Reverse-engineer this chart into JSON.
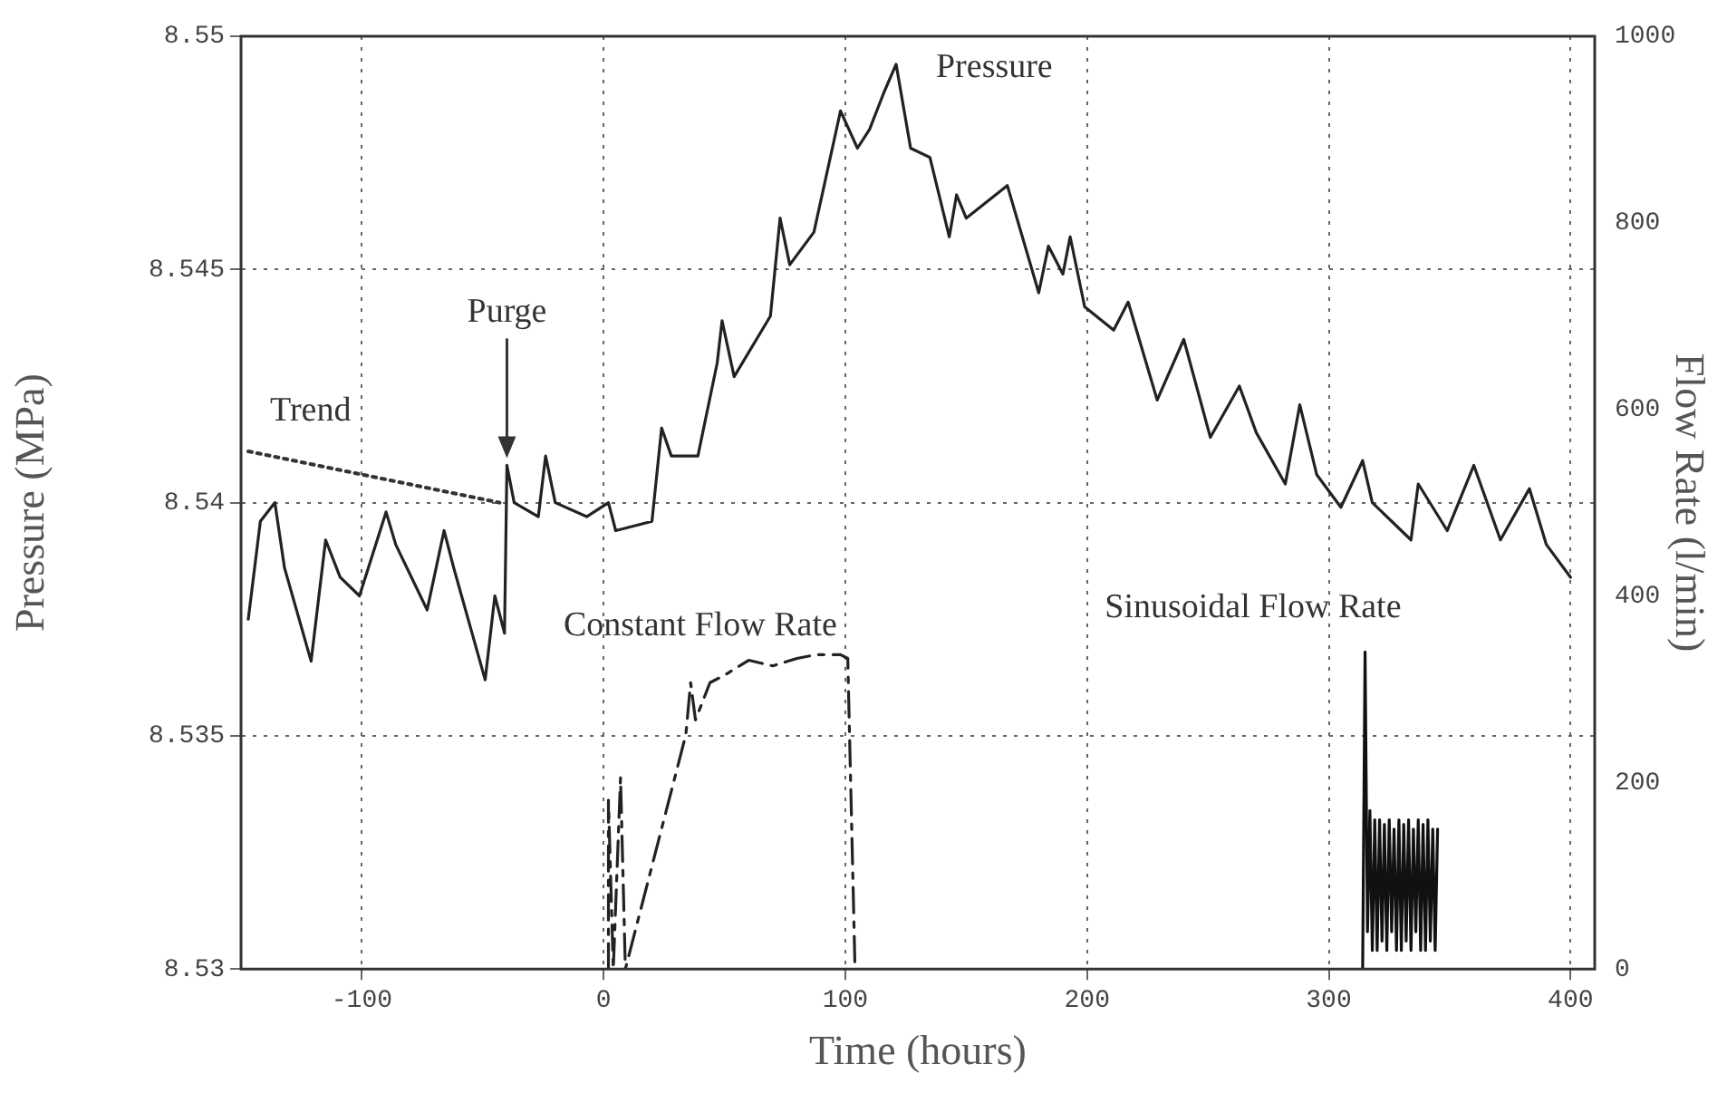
{
  "chart_data": {
    "type": "line",
    "xlabel": "Time (hours)",
    "ylabel": "Pressure (MPa)",
    "y2label": "Flow Rate (l/min)",
    "xlim": [
      -150,
      410
    ],
    "xticks": [
      -100,
      0,
      100,
      200,
      300,
      400
    ],
    "ylim": [
      8.53,
      8.55
    ],
    "yticks": [
      8.53,
      8.535,
      8.54,
      8.545,
      8.55
    ],
    "y2lim": [
      0,
      1000
    ],
    "y2ticks": [
      0,
      200,
      400,
      600,
      800,
      1000
    ],
    "grid": true,
    "legend": false,
    "marker": "none",
    "series": [
      {
        "name": "Pressure",
        "color": "#222222",
        "line_style": "solid",
        "x": [
          -147,
          -142,
          -136,
          -132,
          -121,
          -115,
          -109,
          -101,
          -90,
          -86,
          -73,
          -66,
          -62,
          -49,
          -45,
          -41,
          -40,
          -37,
          -27,
          -24,
          -20,
          -7,
          2,
          5,
          20,
          24,
          28,
          39,
          47,
          49,
          54,
          69,
          73,
          77,
          87,
          98,
          105,
          110,
          116,
          121,
          127,
          135,
          143,
          146,
          150,
          167,
          180,
          184,
          190,
          193,
          199,
          211,
          217,
          229,
          240,
          251,
          263,
          270,
          282,
          288,
          295,
          305,
          314,
          318,
          334,
          337,
          349,
          360,
          371,
          383,
          390,
          400
        ],
        "values": [
          8.5375,
          8.5396,
          8.54,
          8.5386,
          8.5366,
          8.5392,
          8.5384,
          8.538,
          8.5398,
          8.5391,
          8.5377,
          8.5394,
          8.5386,
          8.5362,
          8.538,
          8.5372,
          8.5408,
          8.54,
          8.5397,
          8.541,
          8.54,
          8.5397,
          8.54,
          8.5394,
          8.5396,
          8.5416,
          8.541,
          8.541,
          8.543,
          8.5439,
          8.5427,
          8.544,
          8.5461,
          8.5451,
          8.5458,
          8.5484,
          8.5476,
          8.548,
          8.5488,
          8.5494,
          8.5476,
          8.5474,
          8.5457,
          8.5466,
          8.5461,
          8.5468,
          8.5445,
          8.5455,
          8.5449,
          8.5457,
          8.5442,
          8.5437,
          8.5443,
          8.5422,
          8.5435,
          8.5414,
          8.5425,
          8.5415,
          8.5404,
          8.5421,
          8.5406,
          8.5399,
          8.5409,
          8.54,
          8.5392,
          8.5404,
          8.5394,
          8.5408,
          8.5392,
          8.5403,
          8.5391,
          8.5384
        ]
      },
      {
        "name": "Trend",
        "color": "#333333",
        "line_style": "dotted",
        "x": [
          -147,
          -43
        ],
        "values": [
          8.5411,
          8.54
        ]
      },
      {
        "name": "Constant Flow Rate",
        "color": "#222222",
        "line_style": "dashed",
        "axis": "y2",
        "x": [
          2,
          2,
          4,
          7,
          9,
          34,
          36,
          38,
          44,
          50,
          60,
          70,
          80,
          88,
          98,
          101,
          104
        ],
        "values": [
          0,
          181,
          0,
          205,
          0,
          251,
          307,
          267,
          307,
          315,
          331,
          325,
          333,
          337,
          337,
          333,
          0
        ]
      },
      {
        "name": "Sinusoidal Flow Rate",
        "color": "#111111",
        "line_style": "solid",
        "axis": "y2",
        "x": [
          314,
          315,
          316,
          317,
          318,
          319,
          320,
          321,
          322,
          323,
          324,
          325,
          326,
          327,
          328,
          329,
          330,
          331,
          332,
          333,
          334,
          335,
          336,
          337,
          338,
          339,
          340,
          341,
          342,
          343,
          344,
          345
        ],
        "values": [
          0,
          340,
          40,
          170,
          20,
          160,
          20,
          160,
          30,
          155,
          20,
          160,
          40,
          150,
          20,
          160,
          20,
          155,
          30,
          160,
          20,
          150,
          40,
          160,
          20,
          155,
          20,
          160,
          30,
          150,
          20,
          150
        ]
      }
    ],
    "annotations": [
      {
        "text": "Purge",
        "x": -40,
        "y": 8.5408
      }
    ]
  }
}
